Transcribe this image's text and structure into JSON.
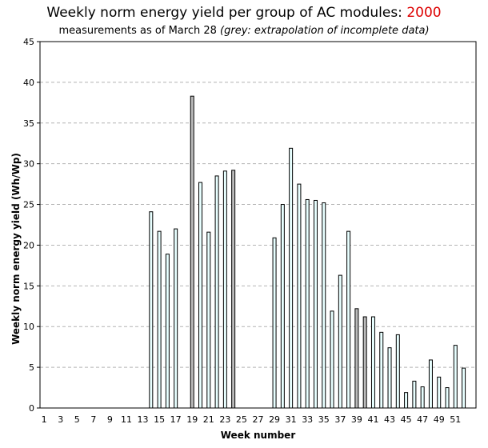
{
  "chart_data": {
    "type": "bar",
    "title_prefix": "Weekly norm energy yield per group of AC modules:",
    "title_year": "2000",
    "subtitle_main": "measurements as of March 28",
    "subtitle_note": "(grey: extrapolation of incomplete data)",
    "xlabel": "Week number",
    "ylabel": "Weekly norm energy yield (Wh/Wp)",
    "ylim": [
      0,
      45
    ],
    "yticks": [
      0,
      5,
      10,
      15,
      20,
      25,
      30,
      35,
      40,
      45
    ],
    "xtick_labels": [
      "1",
      "3",
      "5",
      "7",
      "9",
      "11",
      "13",
      "15",
      "17",
      "19",
      "21",
      "23",
      "25",
      "27",
      "29",
      "31",
      "33",
      "35",
      "37",
      "39",
      "41",
      "43",
      "45",
      "47",
      "49",
      "51"
    ],
    "grid": "horizontal dashed",
    "colors": {
      "measured": "#e8ffff",
      "extrapolated": "#bbbbbb",
      "bar_edge": "#000000",
      "year": "#dd0000"
    },
    "weeks": [
      1,
      2,
      3,
      4,
      5,
      6,
      7,
      8,
      9,
      10,
      11,
      12,
      13,
      14,
      15,
      16,
      17,
      18,
      19,
      20,
      21,
      22,
      23,
      24,
      25,
      26,
      27,
      28,
      29,
      30,
      31,
      32,
      33,
      34,
      35,
      36,
      37,
      38,
      39,
      40,
      41,
      42,
      43,
      44,
      45,
      46,
      47,
      48,
      49,
      50,
      51,
      52,
      53
    ],
    "values": [
      0,
      0,
      0,
      0,
      0,
      0,
      0,
      0,
      0,
      0,
      0,
      0,
      0,
      24.1,
      21.7,
      18.9,
      22.0,
      0,
      38.3,
      27.7,
      21.6,
      28.5,
      29.1,
      29.2,
      0,
      0,
      0,
      0,
      20.9,
      25.0,
      31.9,
      27.5,
      25.6,
      25.5,
      25.2,
      11.9,
      16.3,
      21.7,
      12.2,
      11.2,
      11.2,
      9.3,
      7.4,
      9.0,
      1.9,
      3.3,
      2.6,
      5.9,
      3.8,
      2.5,
      7.7,
      4.9,
      0
    ],
    "extrapolated": [
      19,
      24,
      39,
      40
    ]
  }
}
